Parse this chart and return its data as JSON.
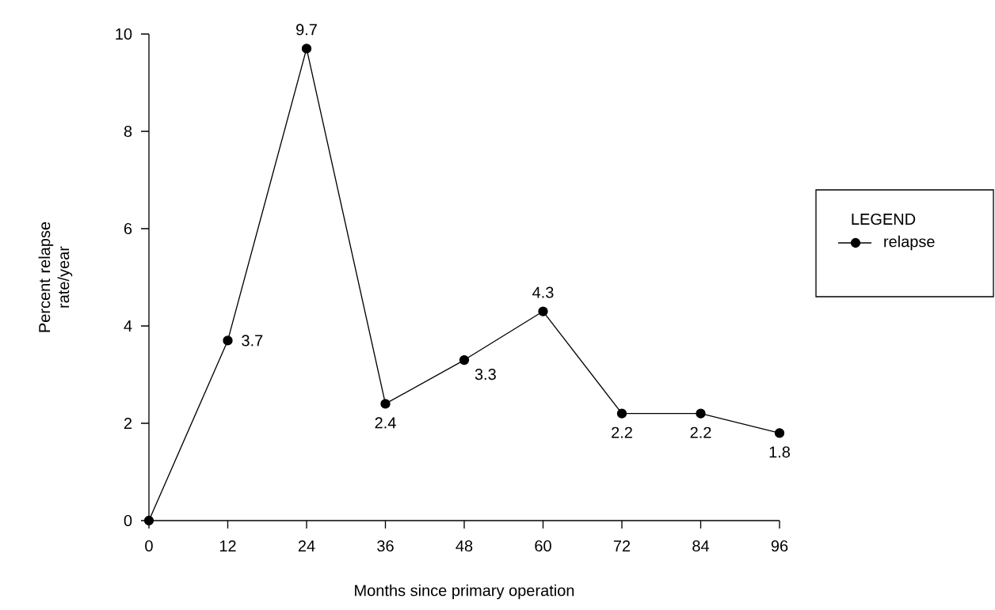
{
  "chart_data": {
    "type": "line",
    "xlabel": "Months since primary operation",
    "ylabel": "Percent relapse rate/year",
    "legend_title": "LEGEND",
    "x": [
      0,
      12,
      24,
      36,
      48,
      60,
      72,
      84,
      96
    ],
    "series": [
      {
        "name": "relapse",
        "color": "#000000",
        "values": [
          0,
          3.7,
          9.7,
          2.4,
          3.3,
          4.3,
          2.2,
          2.2,
          1.8
        ],
        "value_labels": [
          null,
          "3.7",
          "9.7",
          "2.4",
          "3.3",
          "4.3",
          "2.2",
          "2.2",
          "1.8"
        ]
      }
    ],
    "xlim": [
      0,
      96
    ],
    "ylim": [
      0,
      10
    ],
    "xticks": [
      0,
      12,
      24,
      36,
      48,
      60,
      72,
      84,
      96
    ],
    "yticks": [
      0,
      2,
      4,
      6,
      8,
      10
    ],
    "grid": false,
    "legend": "right",
    "marker": "circle",
    "line_style": "solid"
  }
}
